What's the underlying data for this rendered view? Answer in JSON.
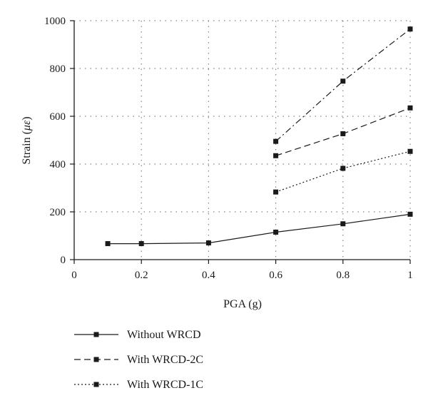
{
  "chart_data": {
    "type": "line",
    "xlabel": "PGA (g)",
    "ylabel_prefix": "Strain (",
    "ylabel_symbol": "με",
    "ylabel_suffix": ")",
    "xlim": [
      0,
      1
    ],
    "ylim": [
      0,
      1000
    ],
    "xticks": [
      0,
      0.2,
      0.4,
      0.6,
      0.8,
      1
    ],
    "xtick_labels": [
      "0",
      "0.2",
      "0.4",
      "0.6",
      "0.8",
      "1"
    ],
    "yticks": [
      0,
      200,
      400,
      600,
      800,
      1000
    ],
    "ytick_labels": [
      "0",
      "200",
      "400",
      "600",
      "800",
      "1000"
    ],
    "grid": true,
    "legend_position": "bottom",
    "series": [
      {
        "name": "Without WRCD",
        "style": "solid",
        "x": [
          0.1,
          0.2,
          0.4,
          0.6,
          0.8,
          1.0
        ],
        "y": [
          67,
          67,
          70,
          115,
          150,
          190
        ]
      },
      {
        "name": "With WRCD-2C",
        "style": "dashed",
        "x": [
          0.6,
          0.8,
          1.0
        ],
        "y": [
          435,
          527,
          635
        ]
      },
      {
        "name": "With WRCD-1C",
        "style": "dotted",
        "x": [
          0.6,
          0.8,
          1.0
        ],
        "y": [
          283,
          382,
          453
        ]
      },
      {
        "name": "",
        "style": "dashdot",
        "x": [
          0.6,
          0.8,
          1.0
        ],
        "y": [
          495,
          747,
          965
        ]
      }
    ],
    "colors": {
      "line": "#1a1a1a",
      "grid": "#808080"
    }
  }
}
